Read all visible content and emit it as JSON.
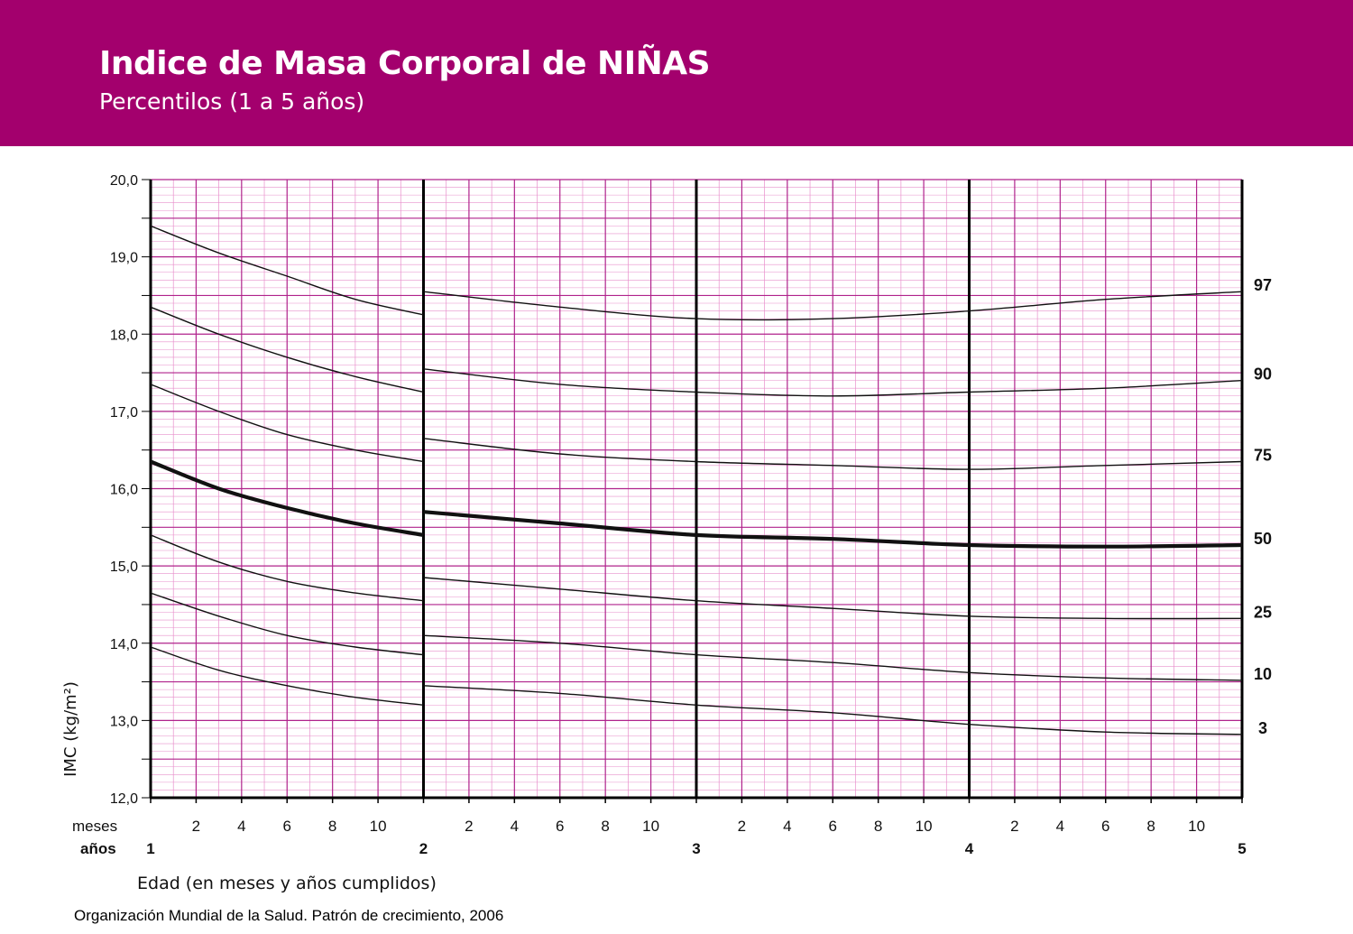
{
  "header": {
    "title": "Indice de Masa Corporal de NIÑAS",
    "subtitle": "Percentilos (1 a 5 años)"
  },
  "footer": {
    "source": "Organización Mundial de la Salud. Patrón de crecimiento, 2006"
  },
  "colors": {
    "banner": "#a3006d",
    "grid_major": "#b0238c",
    "grid_minor": "#e890cc",
    "curve": "#111111"
  },
  "chart_data": {
    "type": "line",
    "xlabel": "Edad (en meses y años cumplidos)",
    "ylabel": "IMC (kg/m²)",
    "row_label_months": "meses",
    "row_label_years": "años",
    "xlim": [
      12,
      60
    ],
    "ylim": [
      12.0,
      20.0
    ],
    "yticks": [
      "12,0",
      "13,0",
      "14,0",
      "15,0",
      "16,0",
      "17,0",
      "18,0",
      "19,0",
      "20,0"
    ],
    "month_ticks": [
      "2",
      "4",
      "6",
      "8",
      "10"
    ],
    "year_ticks": [
      "1",
      "2",
      "3",
      "4",
      "5"
    ],
    "grid": true,
    "segment_breaks_months": [
      24
    ],
    "series": [
      {
        "name": "97",
        "bold": false,
        "segments": [
          {
            "x": [
              12,
              15,
              18,
              21,
              24
            ],
            "y": [
              19.4,
              19.05,
              18.75,
              18.45,
              18.25
            ]
          },
          {
            "x": [
              24,
              30,
              36,
              42,
              48,
              54,
              60
            ],
            "y": [
              18.55,
              18.35,
              18.2,
              18.2,
              18.3,
              18.45,
              18.55
            ]
          }
        ]
      },
      {
        "name": "90",
        "bold": false,
        "segments": [
          {
            "x": [
              12,
              15,
              18,
              21,
              24
            ],
            "y": [
              18.35,
              18.0,
              17.7,
              17.45,
              17.25
            ]
          },
          {
            "x": [
              24,
              30,
              36,
              42,
              48,
              54,
              60
            ],
            "y": [
              17.55,
              17.35,
              17.25,
              17.2,
              17.25,
              17.3,
              17.4
            ]
          }
        ]
      },
      {
        "name": "75",
        "bold": false,
        "segments": [
          {
            "x": [
              12,
              15,
              18,
              21,
              24
            ],
            "y": [
              17.35,
              17.0,
              16.7,
              16.5,
              16.35
            ]
          },
          {
            "x": [
              24,
              30,
              36,
              42,
              48,
              54,
              60
            ],
            "y": [
              16.65,
              16.45,
              16.35,
              16.3,
              16.25,
              16.3,
              16.35
            ]
          }
        ]
      },
      {
        "name": "50",
        "bold": true,
        "segments": [
          {
            "x": [
              12,
              15,
              18,
              21,
              24
            ],
            "y": [
              16.35,
              16.0,
              15.75,
              15.55,
              15.4
            ]
          },
          {
            "x": [
              24,
              30,
              36,
              42,
              48,
              54,
              60
            ],
            "y": [
              15.7,
              15.55,
              15.4,
              15.35,
              15.27,
              15.25,
              15.27
            ]
          }
        ]
      },
      {
        "name": "25",
        "bold": false,
        "segments": [
          {
            "x": [
              12,
              15,
              18,
              21,
              24
            ],
            "y": [
              15.4,
              15.05,
              14.8,
              14.65,
              14.55
            ]
          },
          {
            "x": [
              24,
              30,
              36,
              42,
              48,
              54,
              60
            ],
            "y": [
              14.85,
              14.7,
              14.55,
              14.45,
              14.35,
              14.32,
              14.32
            ]
          }
        ]
      },
      {
        "name": "10",
        "bold": false,
        "segments": [
          {
            "x": [
              12,
              15,
              18,
              21,
              24
            ],
            "y": [
              14.65,
              14.35,
              14.1,
              13.95,
              13.85
            ]
          },
          {
            "x": [
              24,
              30,
              36,
              42,
              48,
              54,
              60
            ],
            "y": [
              14.1,
              14.0,
              13.85,
              13.75,
              13.62,
              13.55,
              13.52
            ]
          }
        ]
      },
      {
        "name": "3",
        "bold": false,
        "segments": [
          {
            "x": [
              12,
              15,
              18,
              21,
              24
            ],
            "y": [
              13.95,
              13.65,
              13.45,
              13.3,
              13.2
            ]
          },
          {
            "x": [
              24,
              30,
              36,
              42,
              48,
              54,
              60
            ],
            "y": [
              13.45,
              13.35,
              13.2,
              13.1,
              12.95,
              12.85,
              12.82
            ]
          }
        ]
      }
    ]
  }
}
